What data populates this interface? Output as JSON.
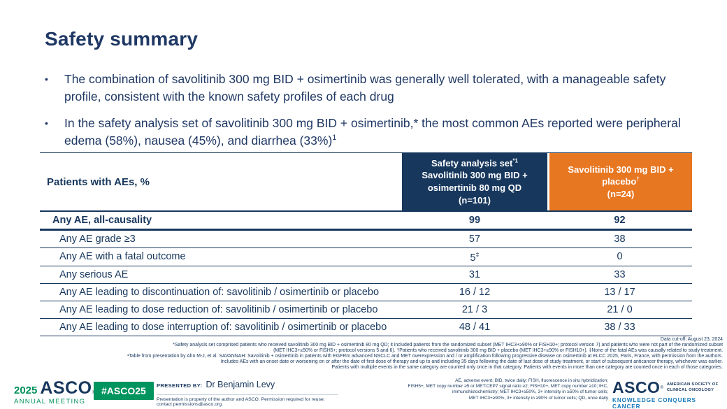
{
  "slide": {
    "title": "Safety summary",
    "bullet_marker": "•",
    "bullet1": "The combination of savolitinib 300 mg BID + osimertinib was generally well tolerated, with a manageable safety profile, consistent with the known safety profiles of each drug",
    "bullet2_main": "In the safety analysis set of savolitinib 300 mg BID + osimertinib,* the most common AEs reported were peripheral edema (58%), nausea (45%), and diarrhea (33%)",
    "bullet2_sup": "1"
  },
  "table": {
    "header": {
      "col1": "Patients with AEs, %",
      "col2_line1": "Safety analysis set",
      "col2_sup": "*1",
      "col2_line2": "Savolitinib 300 mg BID +",
      "col2_line3": "osimertinib 80 mg QD",
      "col2_line4": "(n=101)",
      "col3_line1": "Savolitinib 300 mg BID +",
      "col3_line2": "placebo",
      "col3_sup": "†",
      "col3_line3": "(n=24)"
    },
    "rows": [
      {
        "label": "Any AE, all-causality",
        "v1": "99",
        "v2": "92"
      },
      {
        "label": "Any AE grade ≥3",
        "v1": "57",
        "v2": "38"
      },
      {
        "label": "Any AE with a fatal outcome",
        "v1": "5",
        "v1_sup": "‡",
        "v2": "0"
      },
      {
        "label": "Any serious AE",
        "v1": "31",
        "v2": "33"
      },
      {
        "label": "Any AE leading to discontinuation of: savolitinib / osimertinib or placebo",
        "v1": "16 / 12",
        "v2": "13 / 17"
      },
      {
        "label": "Any AE leading to dose reduction of: savolitinib / osimertinib or placebo",
        "v1": "21 / 3",
        "v2": "21 / 0"
      },
      {
        "label": "Any AE leading to dose interruption of: savolitinib / osimertinib or placebo",
        "v1": "48 / 41",
        "v2": "38 / 33"
      }
    ]
  },
  "footnotes": {
    "lines": [
      "Data cut-off: August 23, 2024",
      "*Safety analysis set comprised patients who received savolitinib 300 mg BID + osimertinib 80 mg QD; it included patients from the randomized subset (MET IHC3+≥90% or FISH10+; protocol version 7) and patients who were not part of the randomized subset",
      "(MET IHC3+≥50% or FISH5+; protocol versions 5 and 6). †Patients who received savolitinib 300 mg BID + placebo (MET IHC3+≥90% or FISH10+). ‡None of the fatal AEs was causally related to study treatment.",
      "¹Table from presentation by Ahn M-J, et al. SAVANNAH: Savolitinib + osimertinib in patients with EGFRm advanced NSCLC and MET overexpression and / or amplification following progressive disease on osimertinib at ELCC 2025, Paris, France, with permission from the authors.",
      "Includes AEs with an onset date or worsening on or after the date of first dose of therapy and up to and including 35 days following the date of last dose of study treatment, or start of subsequent anticancer therapy, whichever was earlier.",
      "Patients with multiple events in the same category are counted only once in that category. Patients with events in more than one category are counted once in each of those categories."
    ]
  },
  "footer": {
    "year": "2025",
    "asco": "ASCO",
    "annual_meeting": "ANNUAL MEETING",
    "hashtag": "#ASCO25",
    "presented_by_label": "PRESENTED BY:",
    "presenter": "Dr Benjamin Levy",
    "permission": "Presentation is property of the author and ASCO. Permission required for reuse; contact permissions@asco.org.",
    "abbreviations": [
      "AE, adverse event; BID, twice daily; FISH, fluorescence in situ hybridization;",
      "FISH5+, MET copy number ≥5 or MET:CEP7 signal ratio ≥2; FISH10+, MET copy number ≥10; IHC,",
      "immunohistochemistry; MET IHC3+≥50%, 3+ intensity in ≥50% of tumor cells;",
      "MET IHC3+≥90%, 3+ intensity in ≥90% of tumor cells; QD, once daily"
    ],
    "asco_logo": "ASCO",
    "registered": "®",
    "society_line1": "AMERICAN SOCIETY OF",
    "society_line2": "CLINICAL ONCOLOGY",
    "tagline": "KNOWLEDGE CONQUERS CANCER"
  },
  "colors": {
    "navy": "#17375D",
    "orange": "#E87722",
    "green": "#00945E",
    "tagline_blue": "#1779BA"
  }
}
